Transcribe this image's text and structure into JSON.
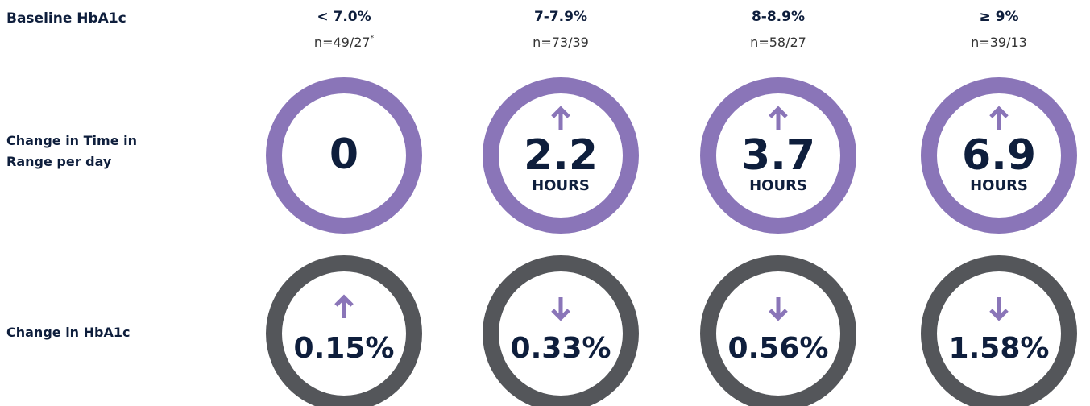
{
  "row_labels": {
    "baseline": "Baseline HbA1c",
    "time_in_range": "Change in Time in Range per day",
    "hba1c": "Change in HbA1c"
  },
  "colors": {
    "time_in_range_ring": "#8a75b8",
    "hba1c_ring": "#54565a",
    "arrow": "#8a75b8",
    "text": "#0e1e3c"
  },
  "columns": [
    {
      "label": "< 7.0%",
      "n": "n=49/27",
      "footnote": "*",
      "time_in_range": {
        "value": "0"
      },
      "hba1c": {
        "value": "0.15%",
        "direction": "up"
      }
    },
    {
      "label": "7-7.9%",
      "n": "n=73/39",
      "time_in_range": {
        "value": "2.2",
        "unit": "HOURS",
        "direction": "up"
      },
      "hba1c": {
        "value": "0.33%",
        "direction": "down"
      }
    },
    {
      "label": "8-8.9%",
      "n": "n=58/27",
      "time_in_range": {
        "value": "3.7",
        "unit": "HOURS",
        "direction": "up"
      },
      "hba1c": {
        "value": "0.56%",
        "direction": "down"
      }
    },
    {
      "label": "≥ 9%",
      "n": "n=39/13",
      "time_in_range": {
        "value": "6.9",
        "unit": "HOURS",
        "direction": "up"
      },
      "hba1c": {
        "value": "1.58%",
        "direction": "down"
      }
    }
  ]
}
